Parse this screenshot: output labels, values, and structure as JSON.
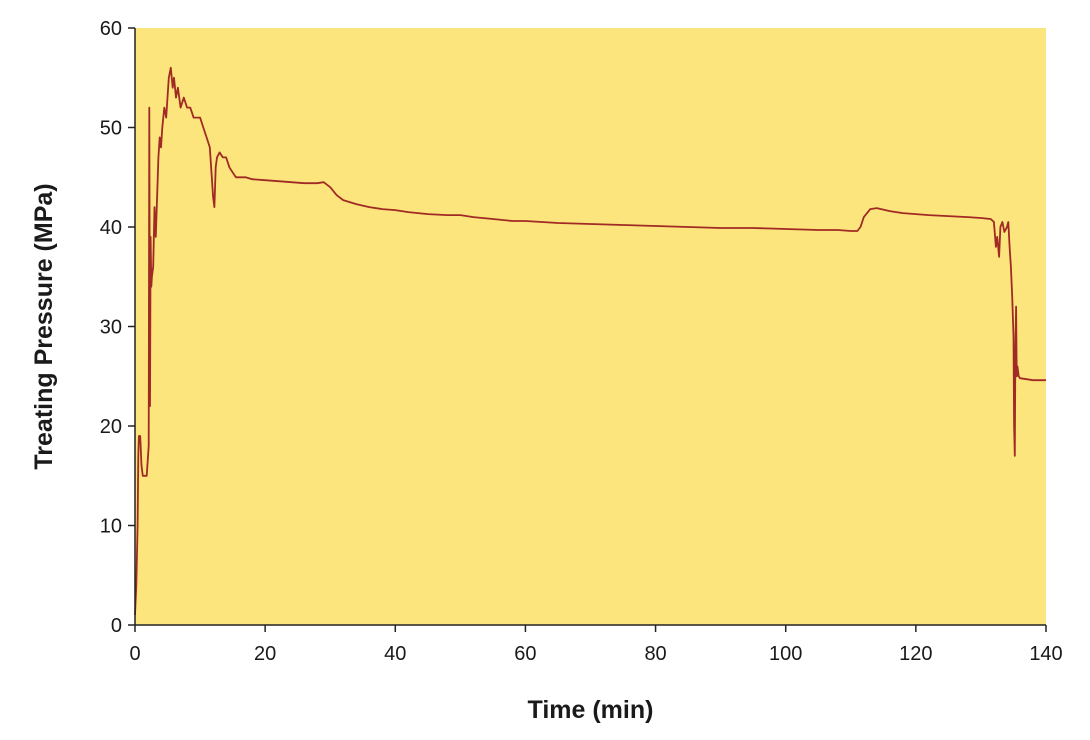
{
  "chart_data": {
    "type": "line",
    "title": "",
    "xlabel": "Time (min)",
    "ylabel": "Treating Pressure (MPa)",
    "xlim": [
      0,
      140
    ],
    "ylim": [
      0,
      60
    ],
    "x_ticks": [
      0,
      20,
      40,
      60,
      80,
      100,
      120,
      140
    ],
    "y_ticks": [
      0,
      10,
      20,
      30,
      40,
      50,
      60
    ],
    "grid": false,
    "legend": "none",
    "colors": {
      "plot_background": "#FCE57D",
      "line": "#A02A24",
      "axis": "#222222"
    },
    "series": [
      {
        "x": [
          0.0,
          0.2,
          0.4,
          0.5,
          0.6,
          0.8,
          1.0,
          1.2,
          1.5,
          1.8,
          2.1,
          2.2,
          2.3,
          2.4,
          2.5,
          2.6,
          2.8,
          3.0,
          3.2,
          3.4,
          3.6,
          3.8,
          4.0,
          4.2,
          4.5,
          4.8,
          5.0,
          5.2,
          5.5,
          5.8,
          6.0,
          6.3,
          6.6,
          7.0,
          7.5,
          8.0,
          8.5,
          9.0,
          9.5,
          10.0,
          10.5,
          11.0,
          11.5,
          11.8,
          12.0,
          12.2,
          12.4,
          12.6,
          13.0,
          13.5,
          14.0,
          14.5,
          15.0,
          15.5,
          16.0,
          17.0,
          18.0,
          20.0,
          22.0,
          24.0,
          26.0,
          28.0,
          29.0,
          30.0,
          31.0,
          32.0,
          33.0,
          34.0,
          36.0,
          38.0,
          40.0,
          42.0,
          45.0,
          48.0,
          50.0,
          52.0,
          55.0,
          58.0,
          60.0,
          65.0,
          70.0,
          75.0,
          80.0,
          85.0,
          90.0,
          95.0,
          100.0,
          105.0,
          108.0,
          110.0,
          111.0,
          111.5,
          112.0,
          113.0,
          114.0,
          116.0,
          118.0,
          120.0,
          122.0,
          125.0,
          128.0,
          130.0,
          131.5,
          132.0,
          132.3,
          132.5,
          132.8,
          133.0,
          133.3,
          133.6,
          134.0,
          134.2,
          134.4,
          134.6,
          134.8,
          135.0,
          135.1,
          135.2,
          135.3,
          135.4,
          135.5,
          135.6,
          135.8,
          136.0,
          137.0,
          138.0,
          140.0
        ],
        "y": [
          1.0,
          4.0,
          10.0,
          17.0,
          19.0,
          19.0,
          16.0,
          15.0,
          15.0,
          15.0,
          18.0,
          52.0,
          22.0,
          39.0,
          34.0,
          35.0,
          36.0,
          42.0,
          39.0,
          43.0,
          47.0,
          49.0,
          48.0,
          50.0,
          52.0,
          51.0,
          53.0,
          55.0,
          56.0,
          54.0,
          55.0,
          53.0,
          54.0,
          52.0,
          53.0,
          52.0,
          52.0,
          51.0,
          51.0,
          51.0,
          50.0,
          49.0,
          48.0,
          45.0,
          43.0,
          42.0,
          46.0,
          47.0,
          47.5,
          47.0,
          47.0,
          46.0,
          45.5,
          45.0,
          45.0,
          45.0,
          44.8,
          44.7,
          44.6,
          44.5,
          44.4,
          44.4,
          44.5,
          44.0,
          43.2,
          42.7,
          42.5,
          42.3,
          42.0,
          41.8,
          41.7,
          41.5,
          41.3,
          41.2,
          41.2,
          41.0,
          40.8,
          40.6,
          40.6,
          40.4,
          40.3,
          40.2,
          40.1,
          40.0,
          39.9,
          39.9,
          39.8,
          39.7,
          39.7,
          39.6,
          39.6,
          40.0,
          41.0,
          41.8,
          41.9,
          41.6,
          41.4,
          41.3,
          41.2,
          41.1,
          41.0,
          40.9,
          40.8,
          40.5,
          38.0,
          39.0,
          37.0,
          40.0,
          40.5,
          39.5,
          40.0,
          40.5,
          38.0,
          36.0,
          33.0,
          29.0,
          20.0,
          17.0,
          28.0,
          32.0,
          25.0,
          26.0,
          25.0,
          24.8,
          24.7,
          24.6,
          24.6
        ]
      }
    ]
  }
}
